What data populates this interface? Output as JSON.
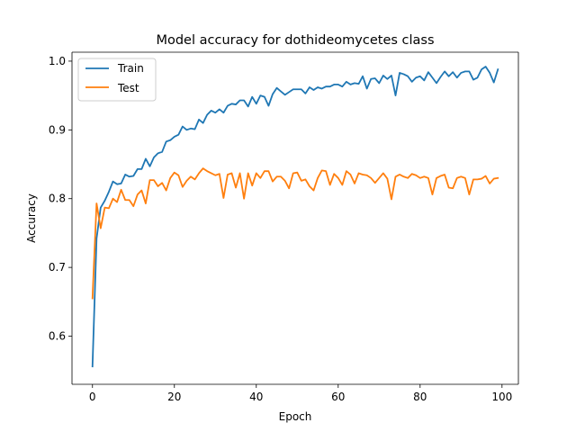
{
  "chart_data": {
    "type": "line",
    "title": "Model accuracy for dothideomycetes class",
    "xlabel": "Epoch",
    "ylabel": "Accuracy",
    "xlim": [
      -5,
      104
    ],
    "ylim": [
      0.53,
      1.013
    ],
    "xticks": [
      0,
      20,
      40,
      60,
      80,
      100
    ],
    "xtick_labels": [
      "0",
      "20",
      "40",
      "60",
      "80",
      "100"
    ],
    "yticks": [
      0.6,
      0.7,
      0.8,
      0.9,
      1.0
    ],
    "ytick_labels": [
      "0.6",
      "0.7",
      "0.8",
      "0.9",
      "1.0"
    ],
    "grid": false,
    "legend_position": "top-left",
    "x": [
      0,
      1,
      2,
      3,
      4,
      5,
      6,
      7,
      8,
      9,
      10,
      11,
      12,
      13,
      14,
      15,
      16,
      17,
      18,
      19,
      20,
      21,
      22,
      23,
      24,
      25,
      26,
      27,
      28,
      29,
      30,
      31,
      32,
      33,
      34,
      35,
      36,
      37,
      38,
      39,
      40,
      41,
      42,
      43,
      44,
      45,
      46,
      47,
      48,
      49,
      50,
      51,
      52,
      53,
      54,
      55,
      56,
      57,
      58,
      59,
      60,
      61,
      62,
      63,
      64,
      65,
      66,
      67,
      68,
      69,
      70,
      71,
      72,
      73,
      74,
      75,
      76,
      77,
      78,
      79,
      80,
      81,
      82,
      83,
      84,
      85,
      86,
      87,
      88,
      89,
      90,
      91,
      92,
      93,
      94,
      95,
      96,
      97,
      98,
      99
    ],
    "series": [
      {
        "name": "Train",
        "color": "#1f77b4",
        "values": [
          0.556,
          0.742,
          0.787,
          0.797,
          0.81,
          0.825,
          0.821,
          0.822,
          0.835,
          0.832,
          0.833,
          0.843,
          0.843,
          0.858,
          0.847,
          0.86,
          0.866,
          0.868,
          0.883,
          0.885,
          0.89,
          0.893,
          0.905,
          0.9,
          0.902,
          0.901,
          0.915,
          0.91,
          0.922,
          0.928,
          0.925,
          0.93,
          0.925,
          0.935,
          0.938,
          0.937,
          0.943,
          0.943,
          0.934,
          0.948,
          0.938,
          0.95,
          0.948,
          0.935,
          0.952,
          0.961,
          0.956,
          0.951,
          0.955,
          0.959,
          0.959,
          0.959,
          0.953,
          0.962,
          0.958,
          0.962,
          0.96,
          0.963,
          0.963,
          0.966,
          0.966,
          0.963,
          0.97,
          0.966,
          0.968,
          0.967,
          0.978,
          0.96,
          0.974,
          0.975,
          0.968,
          0.979,
          0.974,
          0.979,
          0.95,
          0.983,
          0.981,
          0.978,
          0.97,
          0.976,
          0.978,
          0.972,
          0.984,
          0.976,
          0.968,
          0.977,
          0.985,
          0.978,
          0.984,
          0.976,
          0.983,
          0.985,
          0.985,
          0.973,
          0.976,
          0.988,
          0.992,
          0.983,
          0.969,
          0.988
        ]
      },
      {
        "name": "Test",
        "color": "#ff7f0e",
        "values": [
          0.655,
          0.793,
          0.757,
          0.787,
          0.786,
          0.8,
          0.795,
          0.813,
          0.798,
          0.798,
          0.789,
          0.806,
          0.812,
          0.793,
          0.827,
          0.827,
          0.818,
          0.823,
          0.812,
          0.83,
          0.838,
          0.834,
          0.817,
          0.826,
          0.832,
          0.828,
          0.837,
          0.844,
          0.84,
          0.837,
          0.834,
          0.836,
          0.801,
          0.835,
          0.837,
          0.816,
          0.837,
          0.8,
          0.837,
          0.819,
          0.837,
          0.83,
          0.84,
          0.84,
          0.825,
          0.832,
          0.832,
          0.826,
          0.815,
          0.837,
          0.838,
          0.826,
          0.828,
          0.818,
          0.812,
          0.83,
          0.841,
          0.84,
          0.82,
          0.836,
          0.83,
          0.82,
          0.84,
          0.835,
          0.822,
          0.837,
          0.835,
          0.834,
          0.83,
          0.823,
          0.83,
          0.837,
          0.829,
          0.799,
          0.832,
          0.835,
          0.832,
          0.83,
          0.836,
          0.834,
          0.83,
          0.832,
          0.83,
          0.806,
          0.83,
          0.833,
          0.835,
          0.816,
          0.815,
          0.83,
          0.832,
          0.83,
          0.806,
          0.828,
          0.828,
          0.829,
          0.833,
          0.822,
          0.829,
          0.83
        ]
      }
    ]
  }
}
